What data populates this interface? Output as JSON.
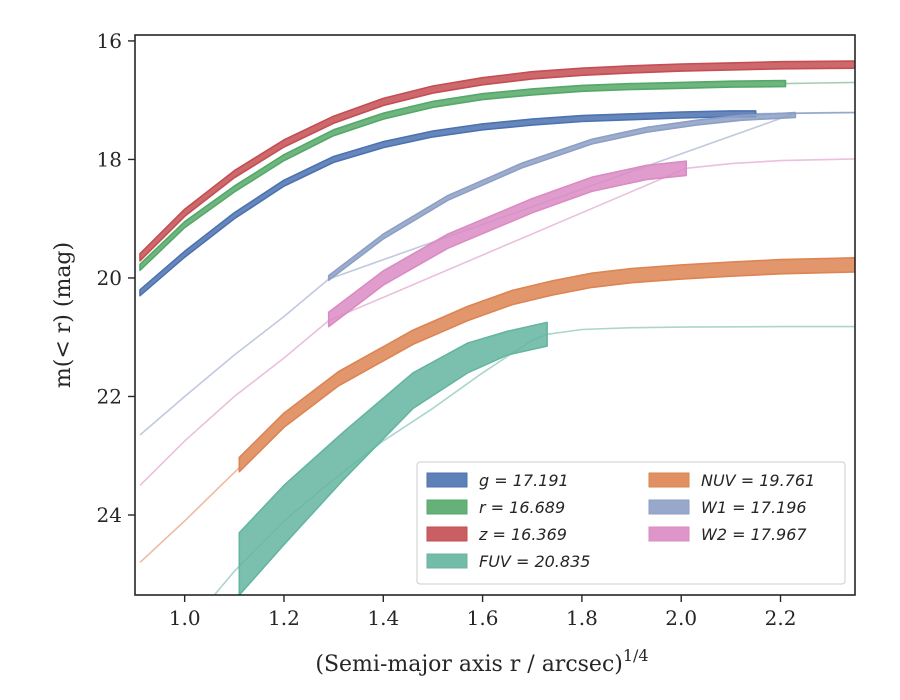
{
  "chart_data": {
    "type": "line",
    "xlabel": "(Semi-major axis r / arcsec)",
    "xlabel_exponent": "1/4",
    "ylabel": "m(< r) (mag)",
    "xlim": [
      0.9,
      2.35
    ],
    "ylim": [
      25.35,
      15.9
    ],
    "y_inverted": true,
    "grid": false,
    "legend_position": "lower-right",
    "xticks": [
      "1.0",
      "1.2",
      "1.4",
      "1.6",
      "1.8",
      "2.0",
      "2.2"
    ],
    "yticks": [
      "16",
      "18",
      "20",
      "22",
      "24"
    ],
    "series": [
      {
        "name": "g = 17.191",
        "color": "#4c72b0",
        "band_width": 0.05,
        "faint": [
          [
            2.15,
            17.23
          ],
          [
            2.25,
            17.22
          ],
          [
            2.35,
            17.21
          ]
        ],
        "band": [
          [
            0.91,
            20.25
          ],
          [
            1.0,
            19.6
          ],
          [
            1.1,
            18.95
          ],
          [
            1.2,
            18.4
          ],
          [
            1.3,
            18.0
          ],
          [
            1.4,
            17.75
          ],
          [
            1.5,
            17.57
          ],
          [
            1.6,
            17.45
          ],
          [
            1.7,
            17.37
          ],
          [
            1.8,
            17.31
          ],
          [
            1.9,
            17.28
          ],
          [
            2.0,
            17.25
          ],
          [
            2.1,
            17.23
          ],
          [
            2.15,
            17.23
          ]
        ]
      },
      {
        "name": "r = 16.689",
        "color": "#55a868",
        "band_width": 0.05,
        "faint": [
          [
            2.21,
            16.72
          ],
          [
            2.28,
            16.71
          ],
          [
            2.35,
            16.7
          ]
        ],
        "band": [
          [
            0.91,
            19.82
          ],
          [
            1.0,
            19.1
          ],
          [
            1.1,
            18.5
          ],
          [
            1.2,
            17.97
          ],
          [
            1.3,
            17.55
          ],
          [
            1.4,
            17.27
          ],
          [
            1.5,
            17.07
          ],
          [
            1.6,
            16.94
          ],
          [
            1.7,
            16.86
          ],
          [
            1.8,
            16.8
          ],
          [
            1.9,
            16.77
          ],
          [
            2.0,
            16.75
          ],
          [
            2.1,
            16.73
          ],
          [
            2.21,
            16.72
          ]
        ]
      },
      {
        "name": "z = 16.369",
        "color": "#c44e52",
        "band_width": 0.06,
        "faint": [],
        "band": [
          [
            0.91,
            19.65
          ],
          [
            1.0,
            18.9
          ],
          [
            1.1,
            18.25
          ],
          [
            1.2,
            17.73
          ],
          [
            1.3,
            17.33
          ],
          [
            1.4,
            17.03
          ],
          [
            1.5,
            16.82
          ],
          [
            1.6,
            16.68
          ],
          [
            1.7,
            16.58
          ],
          [
            1.8,
            16.52
          ],
          [
            1.9,
            16.48
          ],
          [
            2.0,
            16.45
          ],
          [
            2.1,
            16.43
          ],
          [
            2.2,
            16.41
          ],
          [
            2.35,
            16.4
          ]
        ]
      },
      {
        "name": "FUV = 20.835",
        "color": "#64b5a0",
        "band_width": 0,
        "faint": [
          [
            1.06,
            25.35
          ],
          [
            1.1,
            24.95
          ],
          [
            1.2,
            24.1
          ],
          [
            1.3,
            23.4
          ],
          [
            1.4,
            22.75
          ],
          [
            1.5,
            22.2
          ],
          [
            1.6,
            21.6
          ],
          [
            1.7,
            21.05
          ],
          [
            1.73,
            20.95
          ],
          [
            1.8,
            20.87
          ],
          [
            1.9,
            20.84
          ],
          [
            2.0,
            20.83
          ],
          [
            2.2,
            20.82
          ],
          [
            2.35,
            20.82
          ]
        ],
        "band_upper": [
          [
            1.11,
            24.3
          ],
          [
            1.2,
            23.5
          ],
          [
            1.32,
            22.6
          ],
          [
            1.46,
            21.6
          ],
          [
            1.57,
            21.1
          ],
          [
            1.65,
            20.9
          ],
          [
            1.73,
            20.75
          ]
        ],
        "band_lower": [
          [
            1.11,
            25.35
          ],
          [
            1.2,
            24.5
          ],
          [
            1.32,
            23.4
          ],
          [
            1.46,
            22.2
          ],
          [
            1.57,
            21.6
          ],
          [
            1.65,
            21.3
          ],
          [
            1.73,
            21.15
          ]
        ]
      },
      {
        "name": "NUV = 19.761",
        "color": "#dd8452",
        "band_width": 0.12,
        "faint": [
          [
            0.91,
            24.8
          ],
          [
            1.0,
            24.1
          ],
          [
            1.11,
            23.2
          ]
        ],
        "band": [
          [
            1.11,
            23.15
          ],
          [
            1.2,
            22.4
          ],
          [
            1.31,
            21.7
          ],
          [
            1.46,
            21.0
          ],
          [
            1.57,
            20.6
          ],
          [
            1.66,
            20.33
          ],
          [
            1.74,
            20.17
          ],
          [
            1.82,
            20.04
          ],
          [
            1.9,
            19.96
          ],
          [
            2.0,
            19.9
          ],
          [
            2.1,
            19.85
          ],
          [
            2.2,
            19.81
          ],
          [
            2.3,
            19.79
          ],
          [
            2.35,
            19.78
          ]
        ]
      },
      {
        "name": "W1 = 17.196",
        "color": "#8c9fc4",
        "band_width": 0.04,
        "faint": [
          [
            0.91,
            22.65
          ],
          [
            1.0,
            22.0
          ],
          [
            1.1,
            21.3
          ],
          [
            1.2,
            20.65
          ],
          [
            1.29,
            20.02
          ],
          [
            2.23,
            17.22
          ],
          [
            2.3,
            17.21
          ],
          [
            2.35,
            17.21
          ]
        ],
        "band": [
          [
            1.29,
            20.0
          ],
          [
            1.4,
            19.3
          ],
          [
            1.53,
            18.65
          ],
          [
            1.68,
            18.1
          ],
          [
            1.82,
            17.7
          ],
          [
            1.93,
            17.5
          ],
          [
            2.03,
            17.38
          ],
          [
            2.12,
            17.3
          ],
          [
            2.23,
            17.25
          ]
        ]
      },
      {
        "name": "W2 = 17.967",
        "color": "#da8bc3",
        "band_width": 0.12,
        "faint": [
          [
            0.91,
            23.5
          ],
          [
            1.0,
            22.75
          ],
          [
            1.1,
            22.0
          ],
          [
            1.2,
            21.35
          ],
          [
            1.29,
            20.72
          ],
          [
            2.01,
            18.15
          ],
          [
            2.1,
            18.07
          ],
          [
            2.2,
            18.02
          ],
          [
            2.35,
            17.99
          ]
        ],
        "band": [
          [
            1.29,
            20.7
          ],
          [
            1.4,
            20.0
          ],
          [
            1.53,
            19.38
          ],
          [
            1.7,
            18.78
          ],
          [
            1.82,
            18.42
          ],
          [
            1.93,
            18.22
          ],
          [
            2.01,
            18.15
          ]
        ]
      }
    ]
  },
  "legend": {
    "items": [
      {
        "label": "g = 17.191",
        "color": "#4c72b0"
      },
      {
        "label": "r = 16.689",
        "color": "#55a868"
      },
      {
        "label": "z = 16.369",
        "color": "#c44e52"
      },
      {
        "label": "FUV = 20.835",
        "color": "#64b5a0"
      },
      {
        "label": "NUV = 19.761",
        "color": "#dd8452"
      },
      {
        "label": "W1 = 17.196",
        "color": "#8c9fc4"
      },
      {
        "label": "W2 = 17.967",
        "color": "#da8bc3"
      }
    ]
  }
}
